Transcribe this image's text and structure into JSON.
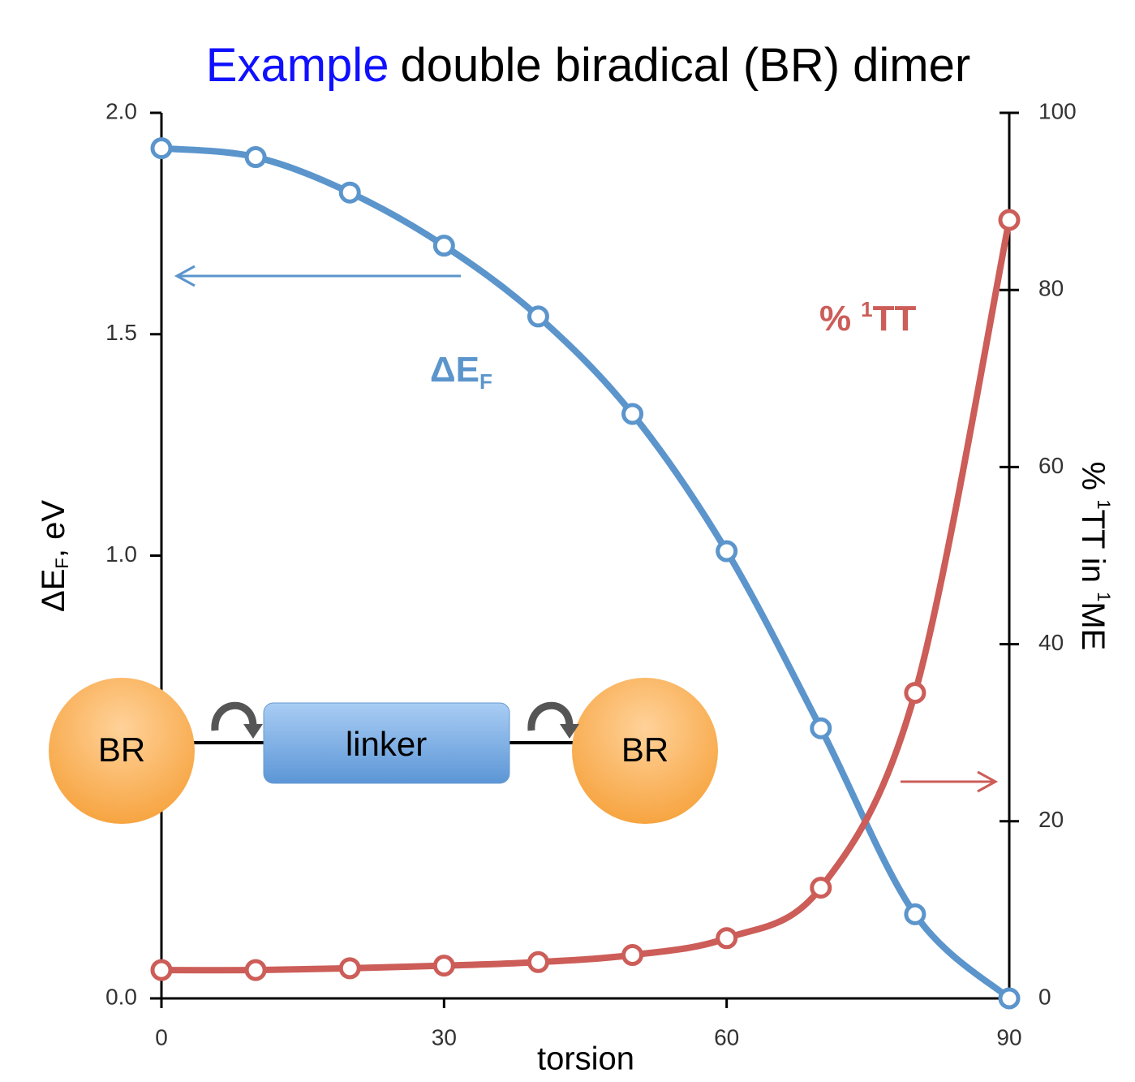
{
  "chart_data": {
    "type": "line",
    "title_prefix": "Example",
    "title": "double biradical (BR) dimer",
    "xlabel": "torsion",
    "ylabel": {
      "main": "ΔE",
      "sub": "F",
      "rest": ", eV"
    },
    "y2label": {
      "a": "% ",
      "sup1": "1",
      "b": "TT in ",
      "sup2": "1",
      "c": "ME"
    },
    "x": [
      0,
      10,
      20,
      30,
      40,
      50,
      60,
      70,
      80,
      90
    ],
    "xlim": [
      0,
      90
    ],
    "xticks": [
      0,
      30,
      60,
      90
    ],
    "ylim": [
      0,
      2
    ],
    "yticks": [
      {
        "value": 0,
        "label": "0.0"
      },
      {
        "value": 1,
        "label": "1.0"
      },
      {
        "value": 1.5,
        "label": "1.5"
      },
      {
        "value": 2,
        "label": "2.0"
      }
    ],
    "y2lim": [
      0,
      100
    ],
    "y2ticks": [
      0,
      20,
      40,
      60,
      80,
      100
    ],
    "series": [
      {
        "name": "ΔE",
        "name_sub": "F",
        "color": "#5b95cc",
        "values": [
          1.92,
          1.9,
          1.82,
          1.7,
          1.54,
          1.32,
          1.01,
          0.61,
          0.19,
          0
        ]
      },
      {
        "name": "%",
        "name_sup": "1",
        "name_rest": "TT",
        "color": "#cc5d58",
        "axis": "y2",
        "values": [
          3.2,
          3.2,
          3.4,
          3.7,
          4.1,
          4.9,
          6.8,
          12.5,
          34.5,
          87.9
        ]
      }
    ],
    "diagram": {
      "left": "BR",
      "middle": "linker",
      "right": "BR"
    }
  }
}
